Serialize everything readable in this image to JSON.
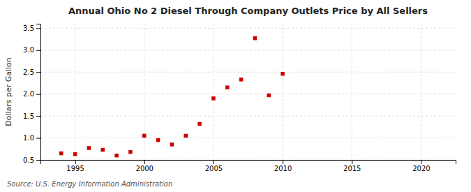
{
  "chart_data": {
    "type": "scatter",
    "title": "Annual Ohio No 2 Diesel Through Company Outlets Price by All Sellers",
    "ylabel": "Dollars per Gallon",
    "annotation": "Source: U.S. Energy Information Administration",
    "x": [
      1994,
      1995,
      1996,
      1997,
      1998,
      1999,
      2000,
      2001,
      2002,
      2003,
      2004,
      2005,
      2006,
      2007,
      2008,
      2009,
      2010
    ],
    "values": [
      0.65,
      0.63,
      0.77,
      0.73,
      0.6,
      0.68,
      1.05,
      0.95,
      0.85,
      1.05,
      1.32,
      1.9,
      2.15,
      2.33,
      3.27,
      1.97,
      2.46
    ],
    "color": "#cc0000",
    "marker": "square",
    "xlim": [
      1992.5,
      2022.5
    ],
    "ylim": [
      0.5,
      3.6
    ],
    "xticks": [
      1995,
      2000,
      2005,
      2010,
      2015,
      2020
    ],
    "yticks": [
      0.5,
      {
        "value": 1.0,
        "label": "1.0"
      },
      1.5,
      {
        "value": 2.0,
        "label": "2.0"
      },
      2.5,
      {
        "value": 3.0,
        "label": "3.0"
      },
      3.5
    ],
    "grid": true
  }
}
